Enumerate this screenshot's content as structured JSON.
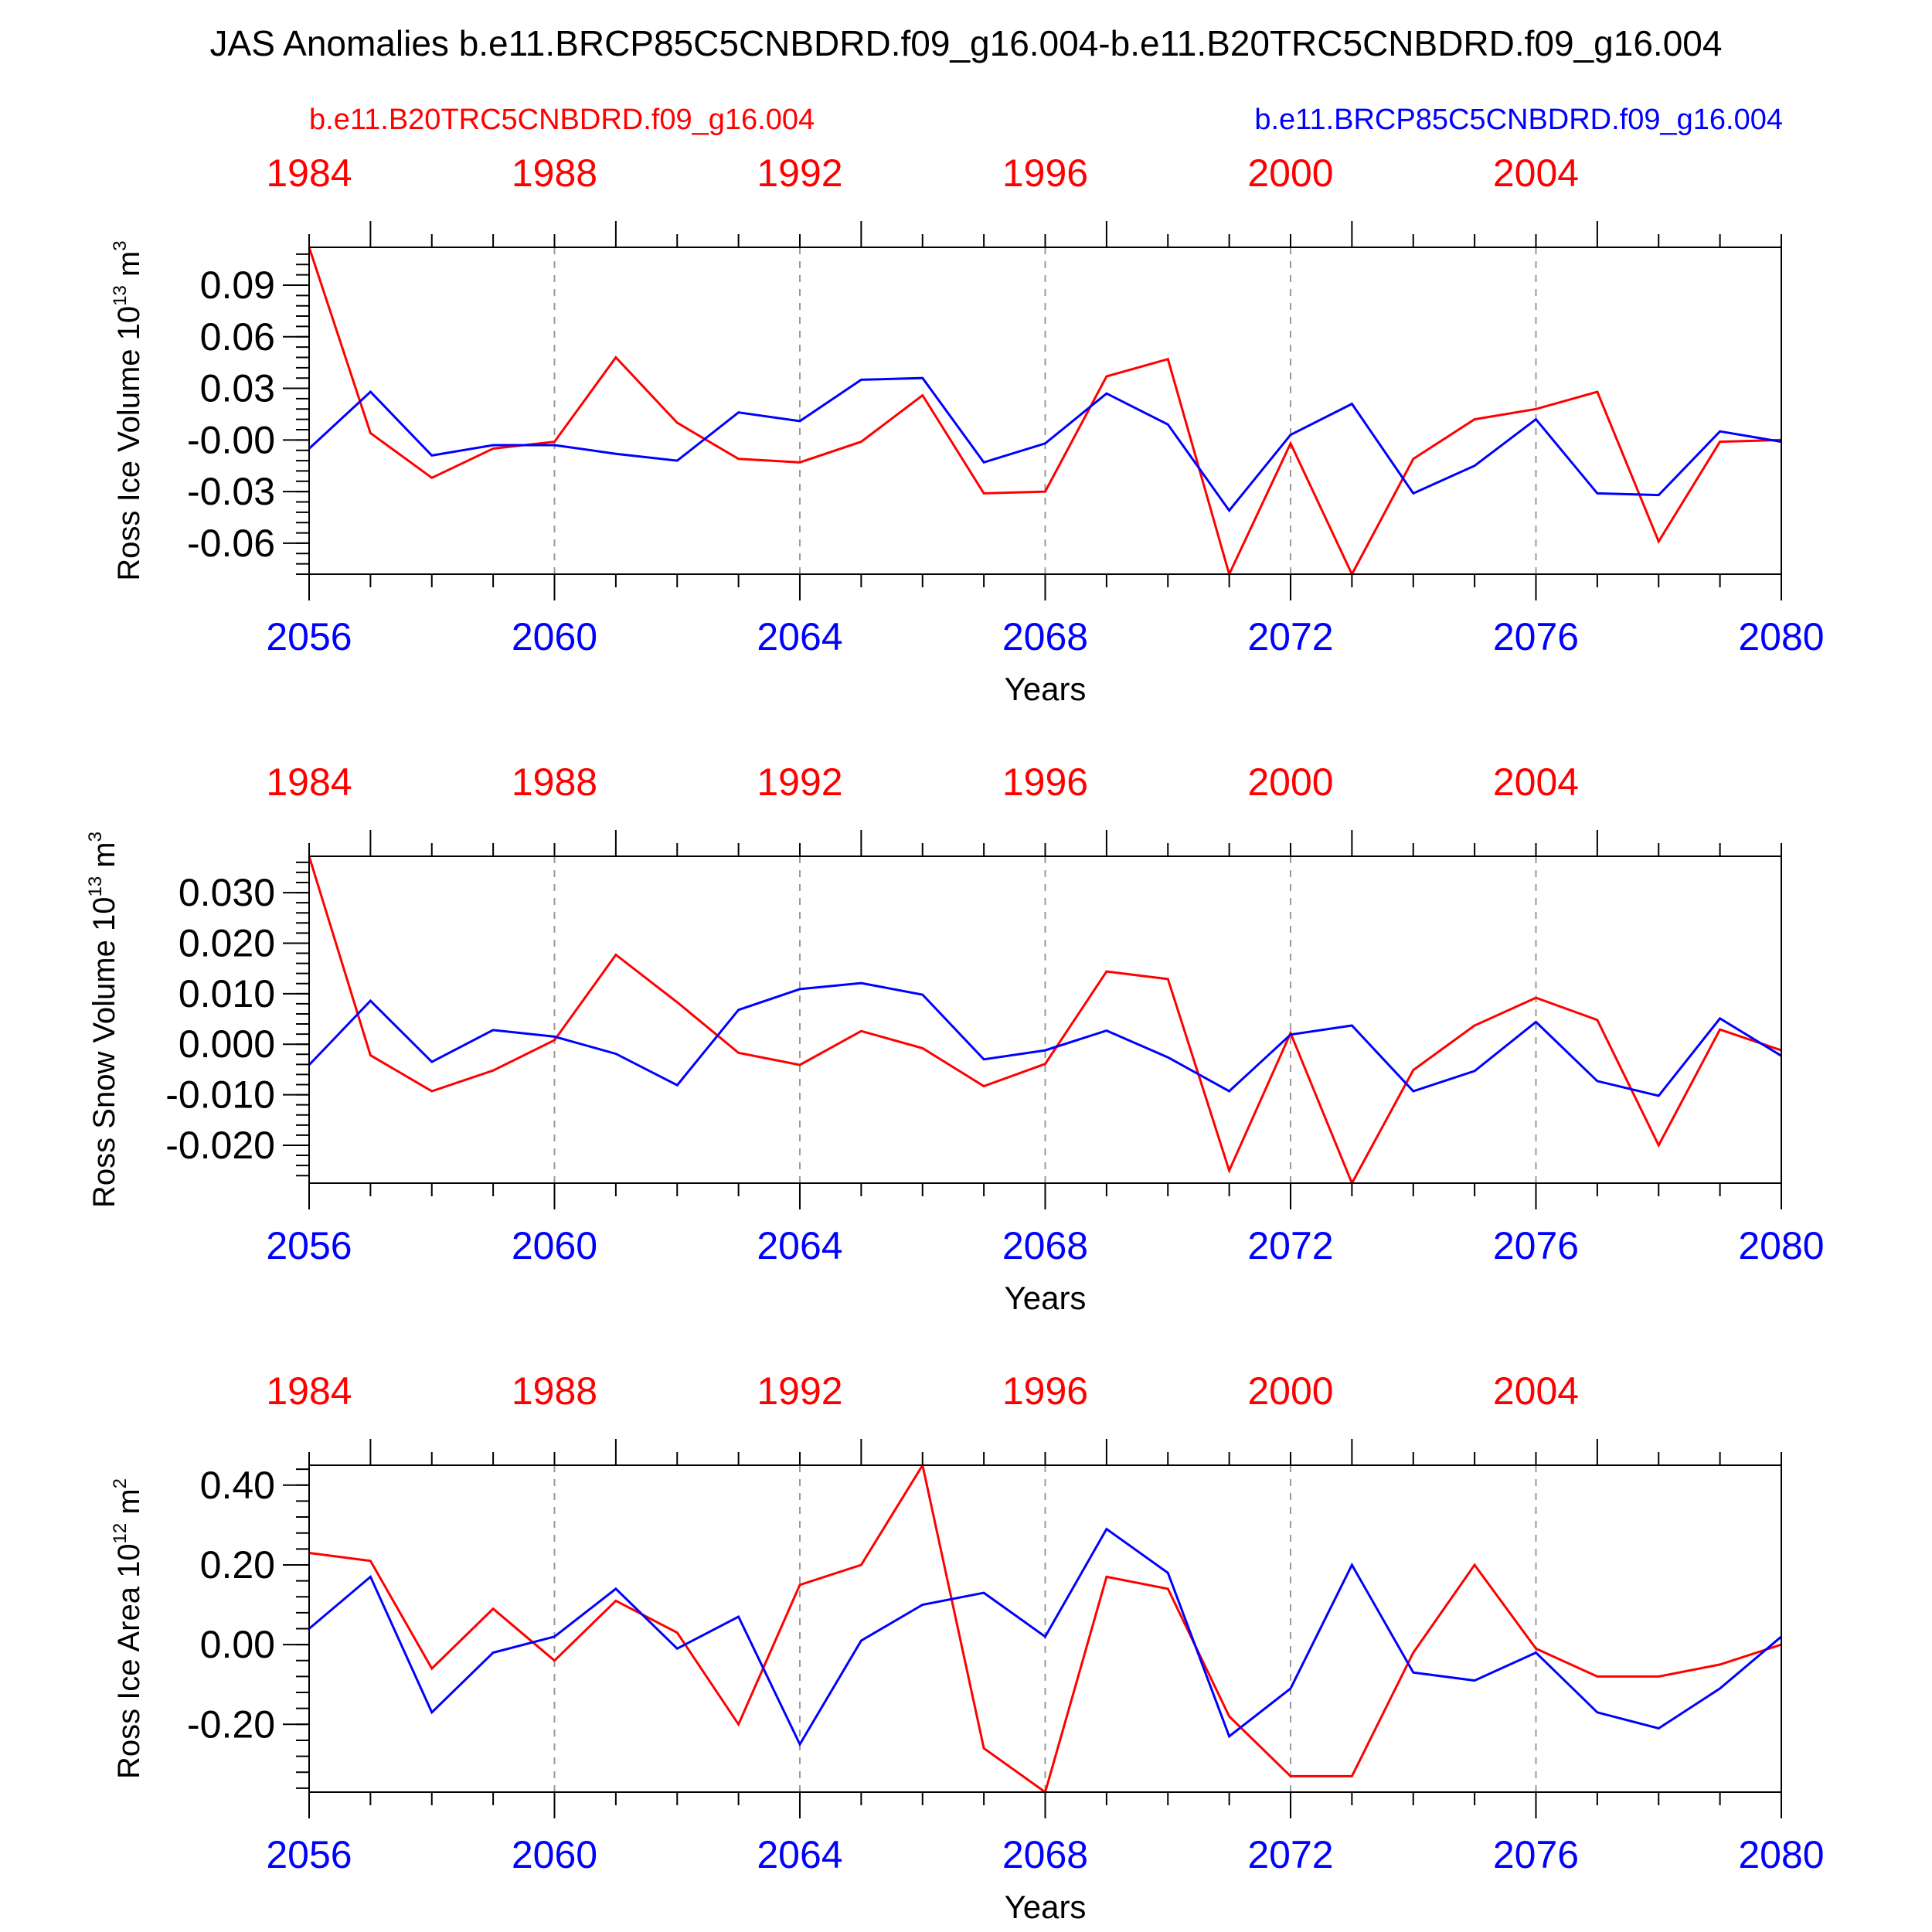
{
  "figure": {
    "title": "JAS Anomalies b.e11.BRCP85C5CNBDRD.f09_g16.004-b.e11.B20TRC5CNBDRD.f09_g16.004",
    "legend_left": "b.e11.B20TRC5CNBDRD.f09_g16.004",
    "legend_right": "b.e11.BRCP85C5CNBDRD.f09_g16.004"
  },
  "colors": {
    "historical": "#ff0000",
    "future": "#0000ff",
    "axis": "#000000",
    "grid": "#999999"
  },
  "chart_data": [
    {
      "type": "line",
      "ylabel": "Ross Ice Volume 10",
      "ylabel_exp": "13",
      "ylabel_unit": " m",
      "ylabel_unit_exp": "3",
      "xlabel": "Years",
      "x_bottom_ticks": [
        "2056",
        "2060",
        "2064",
        "2068",
        "2072",
        "2076",
        "2080"
      ],
      "x_top_ticks": [
        "1984",
        "1988",
        "1992",
        "1996",
        "2000",
        "2004"
      ],
      "ylim": [
        -0.078,
        0.112
      ],
      "yticks": [
        0.09,
        0.06,
        0.03,
        0.0,
        -0.03,
        -0.06
      ],
      "ytick_labels": [
        "0.09",
        "0.06",
        "0.03",
        "-0.00",
        "-0.03",
        "-0.06"
      ],
      "yminor_step": 0.006,
      "x": [
        2056,
        2057,
        2058,
        2059,
        2060,
        2061,
        2062,
        2063,
        2064,
        2065,
        2066,
        2067,
        2068,
        2069,
        2070,
        2071,
        2072,
        2073,
        2074,
        2075,
        2076,
        2077,
        2078,
        2079,
        2080
      ],
      "series": [
        {
          "key": "historical",
          "values": [
            0.112,
            0.004,
            -0.022,
            -0.005,
            -0.001,
            0.048,
            0.01,
            -0.011,
            -0.013,
            -0.001,
            0.026,
            -0.031,
            -0.03,
            0.037,
            0.047,
            -0.078,
            -0.002,
            -0.078,
            -0.011,
            0.012,
            0.018,
            0.028,
            -0.059,
            -0.001,
            0.0
          ]
        },
        {
          "key": "future",
          "values": [
            -0.005,
            0.028,
            -0.009,
            -0.003,
            -0.003,
            -0.008,
            -0.012,
            0.016,
            0.011,
            0.035,
            0.036,
            -0.013,
            -0.002,
            0.027,
            0.009,
            -0.041,
            0.003,
            0.021,
            -0.031,
            -0.015,
            0.012,
            -0.031,
            -0.032,
            0.005,
            -0.001
          ]
        }
      ]
    },
    {
      "type": "line",
      "ylabel": "Ross Snow Volume 10",
      "ylabel_exp": "13",
      "ylabel_unit": " m",
      "ylabel_unit_exp": "3",
      "xlabel": "Years",
      "x_bottom_ticks": [
        "2056",
        "2060",
        "2064",
        "2068",
        "2072",
        "2076",
        "2080"
      ],
      "x_top_ticks": [
        "1984",
        "1988",
        "1992",
        "1996",
        "2000",
        "2004"
      ],
      "ylim": [
        -0.0275,
        0.0372
      ],
      "yticks": [
        0.03,
        0.02,
        0.01,
        0.0,
        -0.01,
        -0.02
      ],
      "ytick_labels": [
        "0.030",
        "0.020",
        "0.010",
        "0.000",
        "-0.010",
        "-0.020"
      ],
      "yminor_step": 0.002,
      "x": [
        2056,
        2057,
        2058,
        2059,
        2060,
        2061,
        2062,
        2063,
        2064,
        2065,
        2066,
        2067,
        2068,
        2069,
        2070,
        2071,
        2072,
        2073,
        2074,
        2075,
        2076,
        2077,
        2078,
        2079,
        2080
      ],
      "series": [
        {
          "key": "historical",
          "values": [
            0.0372,
            -0.0022,
            -0.0093,
            -0.0052,
            0.0008,
            0.0177,
            0.0083,
            -0.0017,
            -0.0041,
            0.0026,
            -0.0008,
            -0.0083,
            -0.0039,
            0.0144,
            0.0129,
            -0.025,
            0.0022,
            -0.0275,
            -0.0051,
            0.0037,
            0.0092,
            0.0048,
            -0.02,
            0.0029,
            -0.0012
          ]
        },
        {
          "key": "future",
          "values": [
            -0.0041,
            0.0086,
            -0.0035,
            0.0028,
            0.0015,
            -0.0019,
            -0.0081,
            0.0068,
            0.0109,
            0.0121,
            0.0098,
            -0.003,
            -0.0012,
            0.0027,
            -0.0026,
            -0.0093,
            0.0019,
            0.0037,
            -0.0093,
            -0.0053,
            0.0044,
            -0.0073,
            -0.0102,
            0.0051,
            -0.0023
          ]
        }
      ]
    },
    {
      "type": "line",
      "ylabel": "Ross Ice Area 10",
      "ylabel_exp": "12",
      "ylabel_unit": " m",
      "ylabel_unit_exp": "2",
      "xlabel": "Years",
      "x_bottom_ticks": [
        "2056",
        "2060",
        "2064",
        "2068",
        "2072",
        "2076",
        "2080"
      ],
      "x_top_ticks": [
        "1984",
        "1988",
        "1992",
        "1996",
        "2000",
        "2004"
      ],
      "ylim": [
        -0.37,
        0.45
      ],
      "yticks": [
        0.4,
        0.2,
        0.0,
        -0.2
      ],
      "ytick_labels": [
        "0.40",
        "0.20",
        "0.00",
        "-0.20"
      ],
      "yminor_step": 0.04,
      "x": [
        2056,
        2057,
        2058,
        2059,
        2060,
        2061,
        2062,
        2063,
        2064,
        2065,
        2066,
        2067,
        2068,
        2069,
        2070,
        2071,
        2072,
        2073,
        2074,
        2075,
        2076,
        2077,
        2078,
        2079,
        2080
      ],
      "series": [
        {
          "key": "historical",
          "values": [
            0.23,
            0.21,
            -0.06,
            0.09,
            -0.04,
            0.11,
            0.03,
            -0.2,
            0.15,
            0.2,
            0.45,
            -0.26,
            -0.37,
            0.17,
            0.14,
            -0.18,
            -0.33,
            -0.33,
            -0.02,
            0.2,
            -0.01,
            -0.08,
            -0.08,
            -0.05,
            0.0
          ]
        },
        {
          "key": "future",
          "values": [
            0.04,
            0.17,
            -0.17,
            -0.02,
            0.02,
            0.14,
            -0.01,
            0.07,
            -0.25,
            0.01,
            0.1,
            0.13,
            0.02,
            0.29,
            0.18,
            -0.23,
            -0.11,
            0.2,
            -0.07,
            -0.09,
            -0.02,
            -0.17,
            -0.21,
            -0.11,
            0.02
          ]
        }
      ]
    }
  ]
}
